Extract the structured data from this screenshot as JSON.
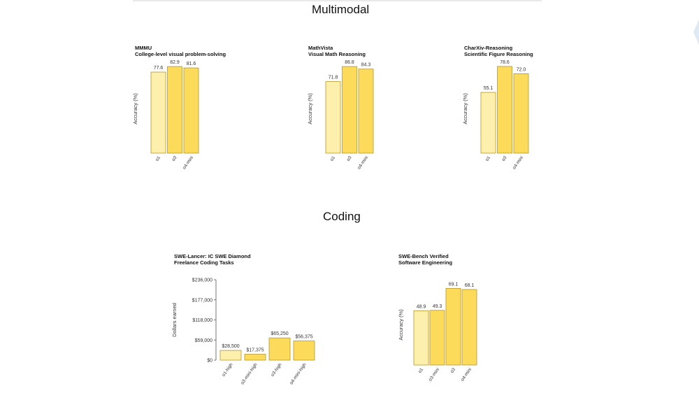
{
  "sections": [
    {
      "title": "Multimodal"
    },
    {
      "title": "Coding"
    }
  ],
  "colors": {
    "light_bar": "#fdf0ad",
    "bar": "#fcdb5a",
    "bar_stroke": "#b8962a",
    "axis": "#555555",
    "deco": "#dfe9f3"
  },
  "chart_data": [
    {
      "type": "bar",
      "title": "MMMU",
      "subtitle": "College-level visual problem-solving",
      "ylabel": "Accuracy (%)",
      "categories": [
        "o1",
        "o3",
        "o4-mini"
      ],
      "values": [
        77.6,
        82.9,
        81.6
      ],
      "value_labels": [
        "77.6",
        "82.9",
        "81.6"
      ],
      "ylim": [
        0,
        85
      ],
      "show_y_ticks": false
    },
    {
      "type": "bar",
      "title": "MathVista",
      "subtitle": "Visual Math Reasoning",
      "ylabel": "Accuracy (%)",
      "categories": [
        "o1",
        "o3",
        "o4-mini"
      ],
      "values": [
        71.8,
        86.8,
        84.3
      ],
      "value_labels": [
        "71.8",
        "86.8",
        "84.3"
      ],
      "ylim": [
        0,
        89
      ],
      "show_y_ticks": false
    },
    {
      "type": "bar",
      "title": "CharXiv-Reasoning",
      "subtitle": "Scientific Figure Reasoning",
      "ylabel": "Accuracy (%)",
      "categories": [
        "o1",
        "o3",
        "o4-mini"
      ],
      "values": [
        55.1,
        78.6,
        72.0
      ],
      "value_labels": [
        "55.1",
        "78.6",
        "72.0"
      ],
      "ylim": [
        0,
        80.5
      ],
      "show_y_ticks": false
    },
    {
      "type": "bar",
      "title": "SWE-Lancer: IC SWE Diamond",
      "subtitle": "Freelance Coding Tasks",
      "ylabel": "Dollars earned",
      "categories": [
        "o1-high",
        "o3-mini-high",
        "o3-high",
        "o4-mini-high"
      ],
      "values": [
        28500,
        17375,
        65250,
        56375
      ],
      "value_labels": [
        "$28,500",
        "$17,375",
        "$65,250",
        "$56,375"
      ],
      "ylim": [
        0,
        236000
      ],
      "show_y_ticks": true,
      "yticks": [
        0,
        59000,
        118000,
        177000,
        236000
      ],
      "ytick_labels": [
        "$0",
        "$59,000",
        "$118,000",
        "$177,000",
        "$236,000"
      ]
    },
    {
      "type": "bar",
      "title": "SWE-Bench Verified",
      "subtitle": "Software Engineering",
      "ylabel": "Accuracy (%)",
      "categories": [
        "o1",
        "o3-mini",
        "o3",
        "o4-mini"
      ],
      "values": [
        48.9,
        49.3,
        69.1,
        68.1
      ],
      "value_labels": [
        "48.9",
        "49.3",
        "69.1",
        "68.1"
      ],
      "ylim": [
        0,
        72.5
      ],
      "show_y_ticks": false
    }
  ]
}
